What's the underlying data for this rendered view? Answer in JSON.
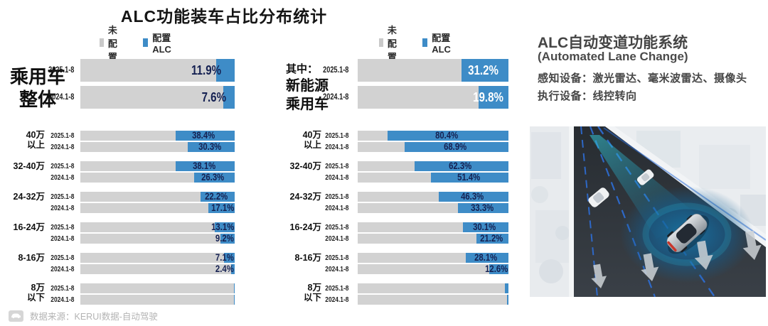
{
  "title": "ALC功能装车占比分布统计",
  "legend": {
    "not_equipped": "未配置",
    "equipped": "配置ALC"
  },
  "colors": {
    "bar_gray": "#d2d2d2",
    "bar_blue": "#3e8cc7",
    "label_navy": "#152152",
    "legend_gray": "#c9c9c9",
    "title_dark": "#151515",
    "panel_gray": "#4a4a4a",
    "source_gray": "#b3b3b3"
  },
  "chart_data": [
    {
      "type": "bar",
      "orientation": "horizontal",
      "stacked": true,
      "unit": "%",
      "x_max": 100,
      "legend": [
        "未配置",
        "配置ALC"
      ],
      "section_label_lines": [
        "乘用车",
        "整体"
      ],
      "overall": {
        "label_style": "dark",
        "rows": [
          {
            "period": "2025.1-8",
            "value": 11.9,
            "label": "11.9%"
          },
          {
            "period": "2024.1-8",
            "value": 7.6,
            "label": "7.6%"
          }
        ]
      },
      "categories": [
        {
          "name": "40万以上",
          "name_lines": [
            "40万",
            "以上"
          ],
          "rows": [
            {
              "period": "2025.1-8",
              "value": 38.4,
              "label": "38.4%"
            },
            {
              "period": "2024.1-8",
              "value": 30.3,
              "label": "30.3%"
            }
          ]
        },
        {
          "name": "32-40万",
          "name_lines": [
            "32-40万"
          ],
          "rows": [
            {
              "period": "2025.1-8",
              "value": 38.1,
              "label": "38.1%"
            },
            {
              "period": "2024.1-8",
              "value": 26.3,
              "label": "26.3%"
            }
          ]
        },
        {
          "name": "24-32万",
          "name_lines": [
            "24-32万"
          ],
          "rows": [
            {
              "period": "2025.1-8",
              "value": 22.2,
              "label": "22.2%"
            },
            {
              "period": "2024.1-8",
              "value": 17.1,
              "label": "17.1%"
            }
          ]
        },
        {
          "name": "16-24万",
          "name_lines": [
            "16-24万"
          ],
          "rows": [
            {
              "period": "2025.1-8",
              "value": 13.1,
              "label": "13.1%"
            },
            {
              "period": "2024.1-8",
              "value": 9.2,
              "label": "9.2%"
            }
          ]
        },
        {
          "name": "8-16万",
          "name_lines": [
            "8-16万"
          ],
          "rows": [
            {
              "period": "2025.1-8",
              "value": 7.1,
              "label": "7.1%"
            },
            {
              "period": "2024.1-8",
              "value": 2.4,
              "label": "2.4%"
            }
          ]
        },
        {
          "name": "8万以下",
          "name_lines": [
            "8万",
            "以下"
          ],
          "rows": [
            {
              "period": "2025.1-8",
              "value": 0.6,
              "label": "",
              "approx": true
            },
            {
              "period": "2024.1-8",
              "value": 0.3,
              "label": "",
              "approx": true
            }
          ]
        }
      ]
    },
    {
      "type": "bar",
      "orientation": "horizontal",
      "stacked": true,
      "unit": "%",
      "x_max": 100,
      "legend": [
        "未配置",
        "配置ALC"
      ],
      "section_label_lines": [
        "其中：",
        "新能源",
        "乘用车"
      ],
      "overall": {
        "label_style": "white",
        "rows": [
          {
            "period": "2025.1-8",
            "value": 31.2,
            "label": "31.2%"
          },
          {
            "period": "2024.1-8",
            "value": 19.8,
            "label": "19.8%"
          }
        ]
      },
      "categories": [
        {
          "name": "40万以上",
          "name_lines": [
            "40万",
            "以上"
          ],
          "rows": [
            {
              "period": "2025.1-8",
              "value": 80.4,
              "label": "80.4%"
            },
            {
              "period": "2024.1-8",
              "value": 68.9,
              "label": "68.9%"
            }
          ]
        },
        {
          "name": "32-40万",
          "name_lines": [
            "32-40万"
          ],
          "rows": [
            {
              "period": "2025.1-8",
              "value": 62.3,
              "label": "62.3%"
            },
            {
              "period": "2024.1-8",
              "value": 51.4,
              "label": "51.4%"
            }
          ]
        },
        {
          "name": "24-32万",
          "name_lines": [
            "24-32万"
          ],
          "rows": [
            {
              "period": "2025.1-8",
              "value": 46.3,
              "label": "46.3%"
            },
            {
              "period": "2024.1-8",
              "value": 33.3,
              "label": "33.3%"
            }
          ]
        },
        {
          "name": "16-24万",
          "name_lines": [
            "16-24万"
          ],
          "rows": [
            {
              "period": "2025.1-8",
              "value": 30.1,
              "label": "30.1%"
            },
            {
              "period": "2024.1-8",
              "value": 21.2,
              "label": "21.2%"
            }
          ]
        },
        {
          "name": "8-16万",
          "name_lines": [
            "8-16万"
          ],
          "rows": [
            {
              "period": "2025.1-8",
              "value": 28.1,
              "label": "28.1%"
            },
            {
              "period": "2024.1-8",
              "value": 12.6,
              "label": "12.6%"
            }
          ]
        },
        {
          "name": "8万以下",
          "name_lines": [
            "8万",
            "以下"
          ],
          "rows": [
            {
              "period": "2025.1-8",
              "value": 2.3,
              "label": "",
              "approx": true
            },
            {
              "period": "2024.1-8",
              "value": 0.8,
              "label": "",
              "approx": true
            }
          ]
        }
      ]
    }
  ],
  "panel": {
    "title": "ALC自动变道功能系统",
    "subtitle": "(Automated Lane Change)",
    "line1": "感知设备：激光雷达、毫米波雷达、摄像头",
    "line2": "执行设备：线控转向",
    "illustration": "autonomous-car-lane-change-3d-render"
  },
  "footer": {
    "source": "数据来源：KERUI数据-自动驾驶"
  }
}
